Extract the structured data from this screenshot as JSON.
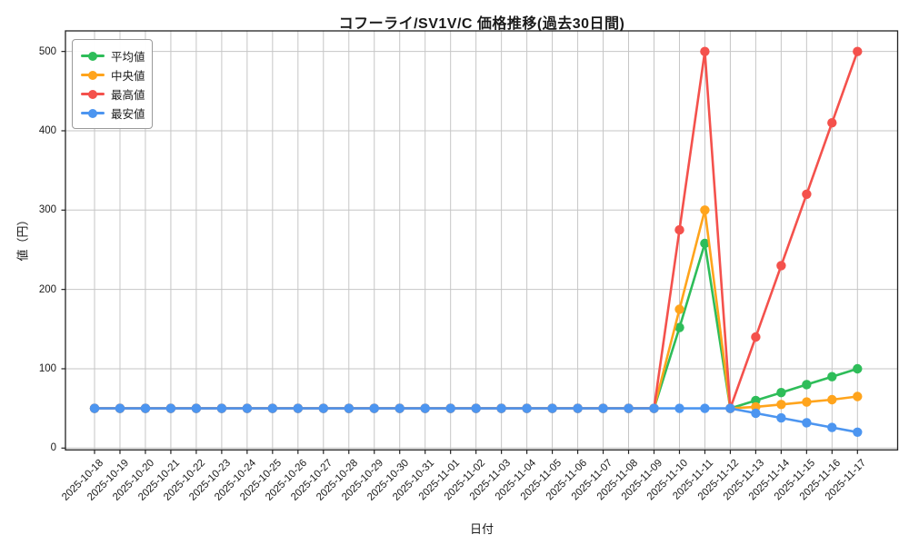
{
  "chart_data": {
    "type": "line",
    "title": "コフーライ/SV1V/C 価格推移(過去30日間)",
    "xlabel": "日付",
    "ylabel": "値（円）",
    "grid": true,
    "legend_position": "upper left",
    "ylim": [
      -4,
      524
    ],
    "yticks": [
      0,
      100,
      200,
      300,
      400,
      500
    ],
    "x": [
      "2025-10-18",
      "2025-10-19",
      "2025-10-20",
      "2025-10-21",
      "2025-10-22",
      "2025-10-23",
      "2025-10-24",
      "2025-10-25",
      "2025-10-26",
      "2025-10-27",
      "2025-10-28",
      "2025-10-29",
      "2025-10-30",
      "2025-10-31",
      "2025-11-01",
      "2025-11-02",
      "2025-11-03",
      "2025-11-04",
      "2025-11-05",
      "2025-11-06",
      "2025-11-07",
      "2025-11-08",
      "2025-11-09",
      "2025-11-10",
      "2025-11-11",
      "2025-11-12",
      "2025-11-13",
      "2025-11-14",
      "2025-11-15",
      "2025-11-16",
      "2025-11-17"
    ],
    "series": [
      {
        "key": "average",
        "name": "平均値",
        "color": "#2ebd59",
        "values": [
          50,
          50,
          50,
          50,
          50,
          50,
          50,
          50,
          50,
          50,
          50,
          50,
          50,
          50,
          50,
          50,
          50,
          50,
          50,
          50,
          50,
          50,
          50,
          152,
          258,
          50,
          60,
          70,
          80,
          90,
          100
        ]
      },
      {
        "key": "median",
        "name": "中央値",
        "color": "#ffa41c",
        "values": [
          50,
          50,
          50,
          50,
          50,
          50,
          50,
          50,
          50,
          50,
          50,
          50,
          50,
          50,
          50,
          50,
          50,
          50,
          50,
          50,
          50,
          50,
          50,
          175,
          300,
          50,
          52,
          55,
          58,
          61,
          65
        ]
      },
      {
        "key": "max",
        "name": "最高値",
        "color": "#f4514c",
        "values": [
          50,
          50,
          50,
          50,
          50,
          50,
          50,
          50,
          50,
          50,
          50,
          50,
          50,
          50,
          50,
          50,
          50,
          50,
          50,
          50,
          50,
          50,
          50,
          275,
          500,
          50,
          140,
          230,
          320,
          410,
          500
        ]
      },
      {
        "key": "min",
        "name": "最安値",
        "color": "#4c95f0",
        "values": [
          50,
          50,
          50,
          50,
          50,
          50,
          50,
          50,
          50,
          50,
          50,
          50,
          50,
          50,
          50,
          50,
          50,
          50,
          50,
          50,
          50,
          50,
          50,
          50,
          50,
          50,
          44,
          38,
          32,
          26,
          20
        ]
      }
    ]
  }
}
